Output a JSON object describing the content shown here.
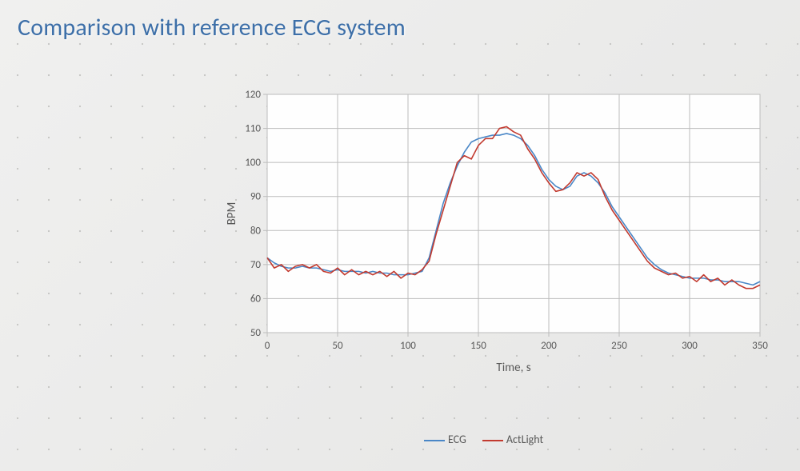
{
  "title": "Comparison with reference ECG system",
  "title_color": "#3d6fa8",
  "background_gradient": [
    "#f0f0ef",
    "#e6e6e5"
  ],
  "dot_color": "#c4c4c2",
  "chart": {
    "type": "line",
    "x_label": "Time, s",
    "y_label": "BPM",
    "xlim": [
      0,
      350
    ],
    "ylim": [
      50,
      120
    ],
    "xtick_step": 50,
    "ytick_step": 10,
    "label_fontsize": 15,
    "tick_fontsize": 13,
    "label_color": "#585858",
    "plot_bg": "#fefefe",
    "grid_color": "#bcbcbc",
    "line_width": 1.6,
    "series": [
      {
        "name": "ECG",
        "color": "#4a87c7",
        "x": [
          0,
          5,
          10,
          15,
          20,
          25,
          30,
          35,
          40,
          45,
          50,
          55,
          60,
          65,
          70,
          75,
          80,
          85,
          90,
          95,
          100,
          105,
          110,
          115,
          120,
          125,
          130,
          135,
          140,
          145,
          150,
          155,
          160,
          165,
          170,
          175,
          180,
          185,
          190,
          195,
          200,
          205,
          210,
          215,
          220,
          225,
          230,
          235,
          240,
          245,
          250,
          255,
          260,
          265,
          270,
          275,
          280,
          285,
          290,
          295,
          300,
          305,
          310,
          315,
          320,
          325,
          330,
          335,
          340,
          345,
          350
        ],
        "y": [
          72,
          70.5,
          69.5,
          69,
          69,
          69.5,
          69,
          69,
          68.5,
          68,
          68.5,
          68,
          68,
          68,
          67.5,
          68,
          67.5,
          67.5,
          67,
          67,
          67,
          67.5,
          68,
          72,
          80,
          88,
          94,
          99,
          103,
          106,
          107,
          107.5,
          108,
          108,
          108.5,
          108,
          107,
          105,
          102,
          98,
          95,
          93,
          92,
          93,
          96,
          97,
          96,
          94,
          91,
          87,
          84,
          81,
          78,
          75,
          72,
          70,
          68.5,
          67.5,
          67,
          66.5,
          66,
          66,
          66,
          65.5,
          65.5,
          65,
          65,
          65,
          64.5,
          64,
          65
        ]
      },
      {
        "name": "ActLight",
        "color": "#c23a2f",
        "x": [
          0,
          5,
          10,
          15,
          20,
          25,
          30,
          35,
          40,
          45,
          50,
          55,
          60,
          65,
          70,
          75,
          80,
          85,
          90,
          95,
          100,
          105,
          110,
          115,
          120,
          125,
          130,
          135,
          140,
          145,
          150,
          155,
          160,
          165,
          170,
          175,
          180,
          185,
          190,
          195,
          200,
          205,
          210,
          215,
          220,
          225,
          230,
          235,
          240,
          245,
          250,
          255,
          260,
          265,
          270,
          275,
          280,
          285,
          290,
          295,
          300,
          305,
          310,
          315,
          320,
          325,
          330,
          335,
          340,
          345,
          350
        ],
        "y": [
          72,
          69,
          70,
          68,
          69.5,
          70,
          69,
          70,
          68,
          67.5,
          69,
          67,
          68.5,
          67,
          68,
          67,
          68,
          66.5,
          68,
          66,
          67.5,
          67,
          68.5,
          71,
          79,
          86,
          93,
          100,
          102,
          101,
          105,
          107,
          107,
          110,
          110.5,
          109,
          108,
          104,
          101,
          97,
          94,
          91.5,
          92,
          94,
          97,
          96,
          97,
          95,
          90,
          86,
          83,
          80,
          77,
          74,
          71,
          69,
          68,
          67,
          67.5,
          66,
          66.5,
          65,
          67,
          65,
          66,
          64,
          65.5,
          64,
          63,
          63,
          64
        ]
      }
    ]
  },
  "legend": {
    "items": [
      {
        "label": "ECG",
        "color": "#4a87c7"
      },
      {
        "label": "ActLight",
        "color": "#c23a2f"
      }
    ]
  }
}
